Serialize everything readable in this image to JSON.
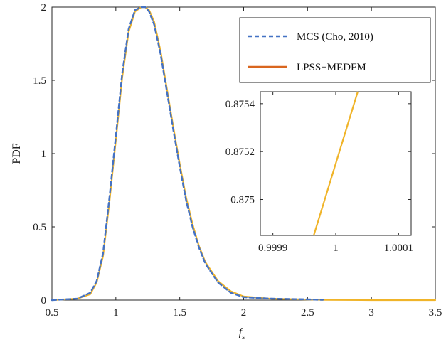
{
  "chart_data": [
    {
      "type": "line",
      "ylabel": "PDF",
      "xlabel": "f",
      "xlabel_subscript": "s",
      "xlim": [
        0.5,
        3.5
      ],
      "ylim": [
        0,
        2
      ],
      "xticks": [
        0.5,
        1,
        1.5,
        2,
        2.5,
        3,
        3.5
      ],
      "xtick_labels": [
        "0.5",
        "1",
        "1.5",
        "2",
        "2.5",
        "3",
        "3.5"
      ],
      "yticks": [
        0,
        0.5,
        1,
        1.5,
        2
      ],
      "ytick_labels": [
        "0",
        "0.5",
        "1",
        "1.5",
        "2"
      ],
      "grid": false,
      "legend_position": "top-right",
      "x": [
        0.5,
        0.7,
        0.8,
        0.85,
        0.9,
        0.95,
        1.0,
        1.05,
        1.1,
        1.15,
        1.2,
        1.23,
        1.26,
        1.3,
        1.35,
        1.4,
        1.45,
        1.5,
        1.55,
        1.6,
        1.65,
        1.7,
        1.8,
        1.9,
        2.0,
        2.2,
        2.5,
        2.62,
        3.0,
        3.5
      ],
      "series": [
        {
          "name": "MCS (Cho, 2010)",
          "style": "dashed",
          "color": "#4472C4",
          "values": [
            0.0,
            0.01,
            0.05,
            0.13,
            0.32,
            0.7,
            1.12,
            1.55,
            1.85,
            1.98,
            2.0,
            2.0,
            1.97,
            1.88,
            1.68,
            1.42,
            1.16,
            0.91,
            0.68,
            0.5,
            0.36,
            0.25,
            0.12,
            0.05,
            0.02,
            0.01,
            0.005,
            0.002,
            null,
            null
          ]
        },
        {
          "name": "LPSS+MEDFM",
          "style": "solid",
          "color": "#F0B429",
          "values": [
            0.0,
            0.01,
            0.04,
            0.12,
            0.3,
            0.67,
            1.09,
            1.52,
            1.83,
            1.97,
            2.0,
            2.0,
            1.98,
            1.9,
            1.7,
            1.44,
            1.18,
            0.93,
            0.7,
            0.52,
            0.37,
            0.26,
            0.13,
            0.06,
            0.025,
            0.01,
            0.004,
            0.002,
            0.0,
            0.0
          ]
        }
      ]
    },
    {
      "type": "line",
      "role": "inset",
      "xlim": [
        0.99988,
        1.00012
      ],
      "ylim": [
        0.87485,
        0.87545
      ],
      "xticks": [
        0.9999,
        1.0,
        1.0001
      ],
      "xtick_labels": [
        "0.9999",
        "1",
        "1.0001"
      ],
      "yticks": [
        0.875,
        0.8752,
        0.8754
      ],
      "ytick_labels": [
        "0.875",
        "0.8752",
        "0.8754"
      ],
      "series": [
        {
          "name": "LPSS+MEDFM",
          "color": "#F0B429",
          "x": [
            0.999965,
            1.000035
          ],
          "values": [
            0.87485,
            0.87545
          ]
        }
      ]
    }
  ]
}
